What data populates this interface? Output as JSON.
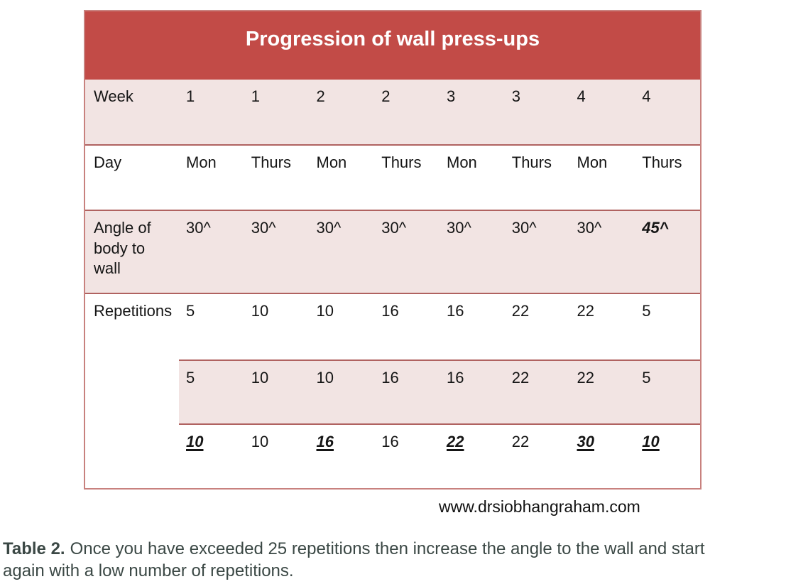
{
  "table": {
    "title": "Progression of wall press-ups",
    "header_bg": "#c24b47",
    "alt_row_bg": "#f2e4e3",
    "border_color": "#b06260",
    "rows": [
      {
        "label": "Week",
        "values": [
          "1",
          "1",
          "2",
          "2",
          "3",
          "3",
          "4",
          "4"
        ]
      },
      {
        "label": "Day",
        "values": [
          "Mon",
          "Thurs",
          "Mon",
          "Thurs",
          "Mon",
          "Thurs",
          "Mon",
          "Thurs"
        ]
      },
      {
        "label": "Angle of body to wall",
        "values": [
          "30^",
          "30^",
          "30^",
          "30^",
          "30^",
          "30^",
          "30^",
          "45^"
        ],
        "bold_italic_indices": [
          7
        ]
      },
      {
        "label": "Repetitions",
        "values": [
          "5",
          "10",
          "10",
          "16",
          "16",
          "22",
          "22",
          "5"
        ]
      },
      {
        "label": "",
        "values": [
          "5",
          "10",
          "10",
          "16",
          "16",
          "22",
          "22",
          "5"
        ]
      },
      {
        "label": "",
        "values": [
          "10",
          "10",
          "16",
          "16",
          "22",
          "22",
          "30",
          "10"
        ],
        "bold_italic_underline_indices": [
          0,
          2,
          4,
          6,
          7
        ]
      }
    ]
  },
  "footer": {
    "website": "www.drsiobhangraham.com"
  },
  "caption": {
    "label": "Table 2.",
    "text": "Once you have exceeded 25 repetitions then increase the angle to the wall and start again with a low number of repetitions."
  }
}
